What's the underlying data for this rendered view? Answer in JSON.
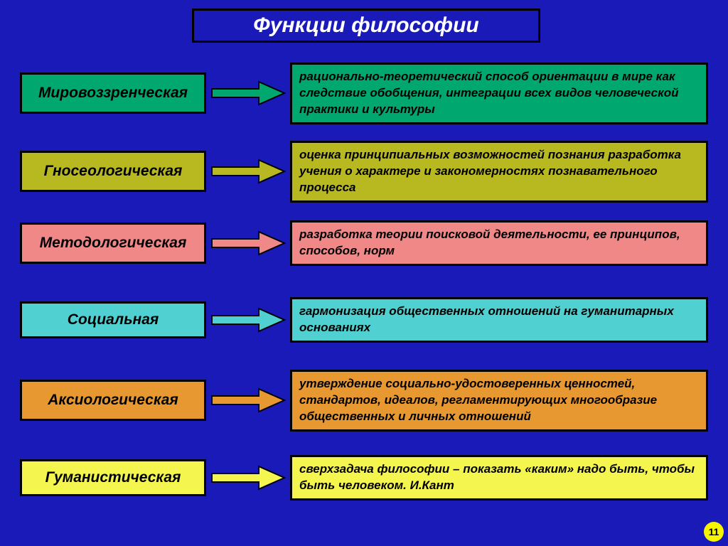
{
  "title": "Функции философии",
  "page_number": "11",
  "layout": {
    "row_tops": [
      88,
      198,
      310,
      418,
      520,
      640
    ],
    "label_heights": [
      58,
      58,
      58,
      52,
      58,
      52
    ],
    "desc_heights": [
      80,
      80,
      60,
      54,
      80,
      60
    ]
  },
  "colors": {
    "background": "#1a1ab8",
    "border": "#000000",
    "text_light": "#ffffff",
    "text_dark": "#000000"
  },
  "rows": [
    {
      "label": "Мировоззренческая",
      "label_bg": "#00a870",
      "arrow_fill": "#00a870",
      "desc_bg": "#00a870",
      "desc": "рационально-теоретический способ ориентации в мире как следствие обобщения, интеграции всех видов человеческой практики и культуры"
    },
    {
      "label": "Гносеологическая",
      "label_bg": "#b8b820",
      "arrow_fill": "#b8b820",
      "desc_bg": "#b8b820",
      "desc": "оценка принципиальных возможностей познания разработка учения о характере и закономерностях познавательного процесса"
    },
    {
      "label": "Методологическая",
      "label_bg": "#f08888",
      "arrow_fill": "#f08888",
      "desc_bg": "#f08888",
      "desc": "разработка теории поисковой деятельности, ее принципов, способов,  норм"
    },
    {
      "label": "Социальная",
      "label_bg": "#50d0d0",
      "arrow_fill": "#50d0d0",
      "desc_bg": "#50d0d0",
      "desc": "гармонизация общественных отношений на гуманитарных основаниях"
    },
    {
      "label": "Аксиологическая",
      "label_bg": "#e89830",
      "arrow_fill": "#e89830",
      "desc_bg": "#e89830",
      "desc": "утверждение социально-удостоверенных ценностей, стандартов, идеалов, регламентирующих многообразие общественных и личных отношений"
    },
    {
      "label": "Гуманистическая",
      "label_bg": "#f5f550",
      "arrow_fill": "#f5f550",
      "desc_bg": "#f5f550",
      "desc": "сверхзадача философии – показать «каким» надо быть, чтобы быть человеком.                               И.Кант"
    }
  ]
}
